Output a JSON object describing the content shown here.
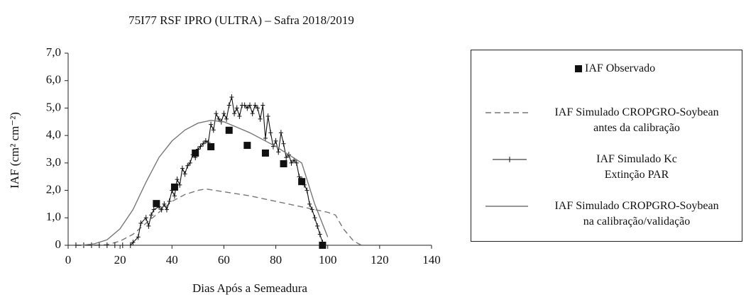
{
  "chart_data": {
    "type": "line",
    "title": "75I77 RSF IPRO (ULTRA) – Safra 2018/2019",
    "xlabel": "Dias Após a Semeadura",
    "ylabel": "IAF (cm² cm⁻²)",
    "xlim": [
      0,
      140
    ],
    "xticks": [
      0,
      20,
      40,
      60,
      80,
      100,
      120,
      140
    ],
    "ylim": [
      0,
      7
    ],
    "yticks": [
      0,
      {
        "value": 1,
        "label": "1,0"
      },
      {
        "value": 2,
        "label": "2,0"
      },
      {
        "value": 3,
        "label": "3,0"
      },
      {
        "value": 4,
        "label": "4,0"
      },
      {
        "value": 5,
        "label": "5,0"
      },
      {
        "value": 6,
        "label": "6,0"
      },
      {
        "value": 7,
        "label": "7,0"
      }
    ],
    "series": [
      {
        "name": "IAF Observado",
        "kind": "scatter",
        "color": "#111111",
        "x": [
          34,
          41,
          49,
          55,
          62,
          69,
          76,
          83,
          90,
          98
        ],
        "values": [
          1.52,
          2.12,
          3.36,
          3.59,
          4.19,
          3.64,
          3.36,
          2.97,
          2.32,
          0
        ]
      },
      {
        "name": "IAF Simulado CROPGRO-Soybean\nantes da calibração",
        "kind": "dashed",
        "color": "#777777",
        "x": [
          3,
          10,
          15,
          20,
          25,
          30,
          35,
          40,
          45,
          50,
          53,
          60,
          70,
          80,
          90,
          100,
          103,
          106,
          110,
          113
        ],
        "values": [
          0,
          0,
          0.02,
          0.15,
          0.4,
          0.8,
          1.2,
          1.6,
          1.85,
          2.0,
          2.05,
          1.95,
          1.8,
          1.6,
          1.4,
          1.2,
          1.1,
          0.6,
          0.15,
          0
        ]
      },
      {
        "name": "IAF Simulado Kc\nExtinção PAR",
        "kind": "marked",
        "color": "#111111",
        "x": [
          3,
          6,
          9,
          12,
          15,
          18,
          21,
          24,
          25,
          27,
          28,
          30,
          31,
          32,
          33,
          35,
          36,
          37,
          38,
          39,
          40,
          41,
          42,
          43,
          44,
          45,
          46,
          47,
          48,
          49,
          50,
          51,
          52,
          53,
          54,
          55,
          56,
          57,
          58,
          59,
          60,
          61,
          62,
          63,
          64,
          65,
          66,
          67,
          68,
          69,
          70,
          71,
          72,
          73,
          74,
          75,
          76,
          77,
          78,
          79,
          80,
          81,
          82,
          83,
          84,
          85,
          86,
          87,
          88,
          89,
          90,
          91,
          92,
          93,
          94,
          95,
          96,
          97,
          98
        ],
        "values": [
          0,
          0,
          0,
          0,
          0,
          0,
          0,
          0,
          0.1,
          0.3,
          0.8,
          1.0,
          0.7,
          1.1,
          1.3,
          1.4,
          1.3,
          1.5,
          1.3,
          1.6,
          2.0,
          1.8,
          2.4,
          2.2,
          2.8,
          2.6,
          2.9,
          3.0,
          3.3,
          3.2,
          3.5,
          3.6,
          3.7,
          3.8,
          3.75,
          4.4,
          4.2,
          4.8,
          4.6,
          4.5,
          4.8,
          4.6,
          5.1,
          5.4,
          4.8,
          5.0,
          4.7,
          5.1,
          5.1,
          5.0,
          5.1,
          4.8,
          5.1,
          5.0,
          4.6,
          5.1,
          3.9,
          4.7,
          4.1,
          3.6,
          3.8,
          3.4,
          4.1,
          3.7,
          3.2,
          3.3,
          3.0,
          3.1,
          3.0,
          2.5,
          2.4,
          2.2,
          2.0,
          1.5,
          1.3,
          1.0,
          0.7,
          0.4,
          0.1
        ]
      },
      {
        "name": "IAF Simulado CROPGRO-Soybean\nna calibração/validação",
        "kind": "solid",
        "color": "#777777",
        "x": [
          5,
          10,
          15,
          20,
          25,
          30,
          35,
          40,
          45,
          50,
          55,
          60,
          65,
          70,
          80,
          90,
          95,
          100
        ],
        "values": [
          0,
          0.05,
          0.2,
          0.6,
          1.3,
          2.3,
          3.2,
          3.8,
          4.2,
          4.45,
          4.55,
          4.5,
          4.3,
          4.1,
          3.6,
          3.0,
          1.5,
          0.3
        ]
      }
    ]
  }
}
